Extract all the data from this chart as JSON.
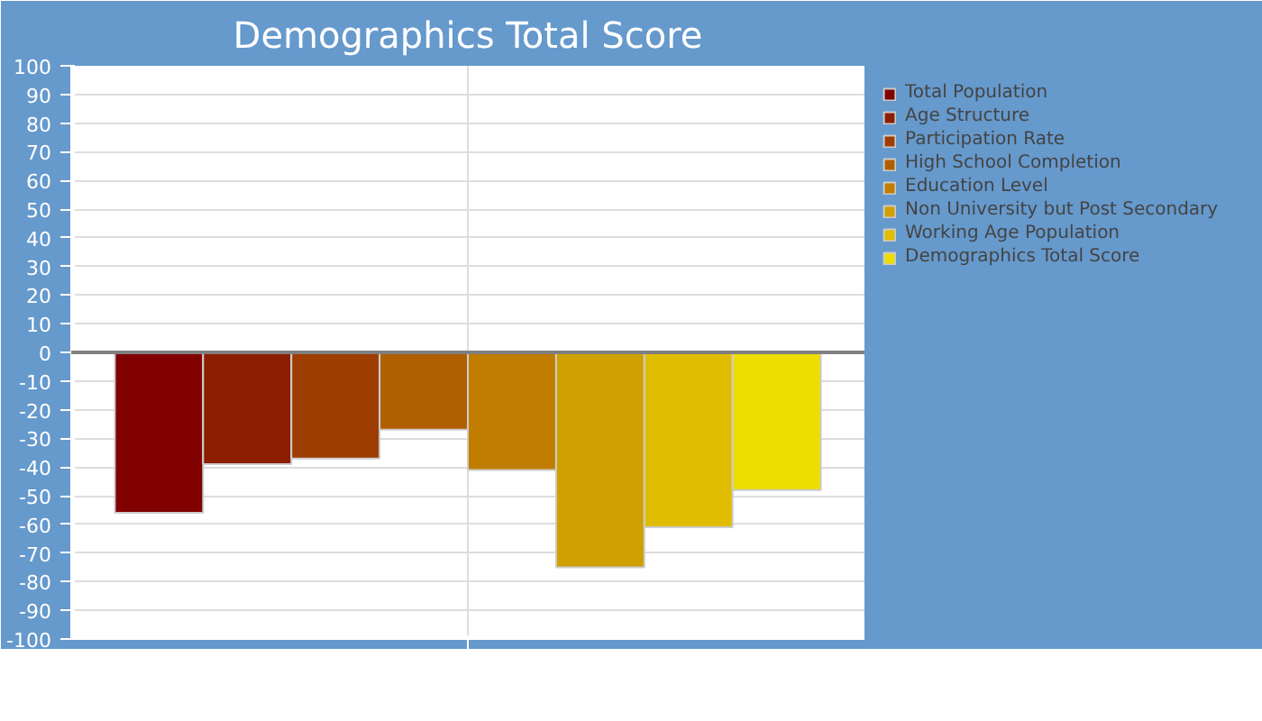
{
  "chart_data": {
    "type": "bar",
    "title": "Demographics Total Score",
    "categories": [
      null
    ],
    "series": [
      {
        "name": "Total Population",
        "color": "#800000",
        "values": [
          -56
        ]
      },
      {
        "name": "Age Structure",
        "color": "#8b1e00",
        "values": [
          -39
        ]
      },
      {
        "name": "Participation Rate",
        "color": "#9e3d00",
        "values": [
          -37
        ]
      },
      {
        "name": "High School Completion",
        "color": "#b05f00",
        "values": [
          -27
        ]
      },
      {
        "name": "Education Level",
        "color": "#c07d00",
        "values": [
          -41
        ]
      },
      {
        "name": "Non University but Post Secondary",
        "color": "#d0a000",
        "values": [
          -75
        ]
      },
      {
        "name": "Working Age Population",
        "color": "#e0bd00",
        "values": [
          -61
        ]
      },
      {
        "name": "Demographics Total Score",
        "color": "#eedd00",
        "values": [
          -48
        ]
      }
    ],
    "ylim": [
      -100,
      100
    ],
    "yticks": [
      -100,
      -90,
      -80,
      -70,
      -60,
      -50,
      -40,
      -30,
      -20,
      -10,
      0,
      10,
      20,
      30,
      40,
      50,
      60,
      70,
      80,
      90,
      100
    ],
    "ref_lines": [
      {
        "axis": "y",
        "value": 0,
        "color": "#808080"
      }
    ],
    "grid": true,
    "legend": "right"
  }
}
